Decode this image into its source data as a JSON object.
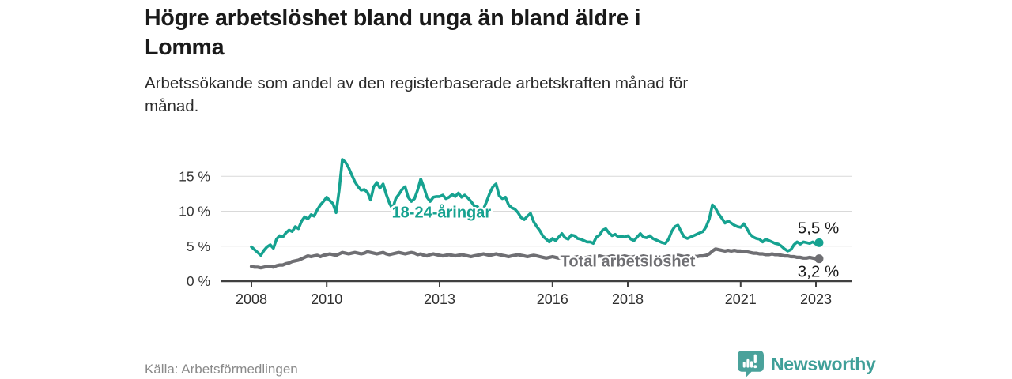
{
  "header": {
    "title": "Högre arbetslöshet bland unga än bland äldre i Lomma",
    "title_lines": [
      "Högre arbetslöshet bland unga än bland äldre i",
      "Lomma"
    ],
    "subtitle": "Arbetssökande som andel av den registerbaserade arbetskraften månad för månad.",
    "subtitle_lines": [
      "Arbetssökande som andel av den registerbaserade arbetskraften månad för",
      "månad."
    ]
  },
  "footer": {
    "source": "Källa: Arbetsförmedlingen",
    "brand": "Newsworthy",
    "brand_color": "#3f9f98",
    "logo_icon": "bar-chart-speech-bubble-icon"
  },
  "chart_data": {
    "type": "line",
    "title": "Högre arbetslöshet bland unga än bland äldre i Lomma",
    "subtitle": "Arbetssökande som andel av den registerbaserade arbetskraften månad för månad.",
    "unit": "%",
    "frequency": "monthly",
    "start": "2008-01",
    "end": "2023-02",
    "x_ticks": [
      2008,
      2010,
      2013,
      2016,
      2018,
      2021,
      2023
    ],
    "y_ticks": [
      0,
      5,
      10,
      15
    ],
    "y_tick_suffix": " %",
    "ylim": [
      0,
      18
    ],
    "xlim_years": [
      2008.0,
      2023.97
    ],
    "grid": "horizontal",
    "legend_position": "inline-labels",
    "series": [
      {
        "name": "18-24-åringar",
        "color": "#16a290",
        "line_width": 3.6,
        "end_label": "5,5 %",
        "end_value": 5.5,
        "label_pos": {
          "year": 2013.05,
          "value": 9.9
        },
        "values": [
          4.9,
          4.5,
          4.1,
          3.7,
          4.4,
          4.9,
          5.2,
          4.7,
          6.0,
          6.5,
          6.3,
          6.9,
          7.3,
          7.1,
          7.8,
          7.5,
          8.6,
          9.2,
          8.9,
          9.5,
          9.3,
          10.2,
          10.9,
          11.4,
          12.0,
          11.5,
          11.1,
          9.8,
          13.1,
          17.4,
          17.0,
          16.2,
          15.2,
          14.2,
          13.5,
          13.0,
          13.1,
          12.7,
          11.6,
          13.5,
          14.1,
          13.3,
          13.9,
          12.4,
          11.2,
          10.3,
          11.8,
          12.4,
          13.1,
          13.5,
          12.0,
          11.4,
          11.8,
          13.0,
          14.6,
          13.4,
          12.0,
          11.4,
          12.0,
          12.1,
          12.1,
          12.3,
          11.8,
          12.0,
          12.4,
          12.1,
          12.6,
          12.0,
          12.3,
          11.9,
          11.4,
          10.8,
          10.7,
          10.1,
          10.3,
          11.4,
          12.6,
          13.5,
          13.9,
          12.2,
          11.8,
          12.0,
          10.9,
          10.5,
          10.3,
          9.8,
          9.1,
          8.8,
          9.3,
          9.7,
          8.5,
          7.8,
          7.2,
          6.4,
          6.0,
          5.6,
          6.1,
          5.8,
          6.3,
          6.8,
          6.2,
          6.0,
          6.6,
          6.5,
          6.1,
          6.0,
          5.8,
          5.6,
          5.6,
          5.4,
          6.3,
          6.6,
          7.3,
          7.5,
          6.9,
          6.5,
          6.7,
          6.3,
          6.4,
          6.3,
          6.5,
          6.0,
          5.8,
          6.3,
          6.8,
          6.3,
          6.2,
          6.5,
          6.1,
          5.9,
          5.7,
          5.5,
          5.4,
          6.0,
          7.1,
          7.8,
          8.0,
          7.1,
          6.3,
          6.1,
          6.3,
          6.5,
          6.7,
          6.9,
          7.1,
          7.8,
          8.9,
          10.9,
          10.4,
          9.6,
          9.0,
          8.3,
          8.6,
          8.3,
          8.0,
          7.8,
          7.7,
          8.2,
          7.5,
          6.7,
          6.3,
          6.1,
          6.0,
          5.6,
          6.0,
          5.8,
          5.6,
          5.4,
          5.3,
          5.0,
          4.6,
          4.3,
          4.5,
          5.2,
          5.6,
          5.3,
          5.6,
          5.5,
          5.4,
          5.6,
          5.3,
          5.5
        ]
      },
      {
        "name": "Total arbetslöshet",
        "color": "#6f6f73",
        "line_width": 4.2,
        "end_label": "3,2 %",
        "end_value": 3.2,
        "label_pos": {
          "year": 2018.0,
          "value": 2.9
        },
        "values": [
          2.1,
          2.0,
          2.0,
          1.9,
          2.0,
          2.1,
          2.1,
          2.0,
          2.2,
          2.3,
          2.3,
          2.5,
          2.6,
          2.8,
          2.9,
          3.0,
          3.2,
          3.4,
          3.6,
          3.5,
          3.6,
          3.7,
          3.5,
          3.7,
          3.8,
          3.9,
          3.8,
          3.7,
          3.9,
          4.1,
          4.0,
          3.9,
          4.0,
          4.1,
          4.0,
          3.9,
          4.0,
          4.2,
          4.1,
          4.0,
          3.9,
          4.0,
          4.1,
          3.9,
          3.8,
          3.9,
          4.0,
          4.1,
          4.0,
          3.9,
          4.0,
          4.1,
          4.0,
          3.8,
          3.9,
          3.7,
          3.6,
          3.8,
          3.9,
          3.8,
          3.7,
          3.6,
          3.7,
          3.8,
          3.7,
          3.6,
          3.7,
          3.8,
          3.7,
          3.6,
          3.5,
          3.6,
          3.7,
          3.8,
          3.9,
          3.8,
          3.7,
          3.8,
          3.9,
          3.8,
          3.7,
          3.6,
          3.5,
          3.6,
          3.7,
          3.8,
          3.7,
          3.6,
          3.5,
          3.6,
          3.7,
          3.6,
          3.5,
          3.4,
          3.3,
          3.4,
          3.5,
          3.4,
          3.3,
          3.4,
          3.5,
          3.4,
          3.3,
          3.4,
          3.5,
          3.4,
          3.3,
          3.4,
          3.5,
          3.4,
          3.5,
          3.6,
          3.5,
          3.4,
          3.5,
          3.6,
          3.5,
          3.4,
          3.5,
          3.6,
          3.5,
          3.4,
          3.5,
          3.6,
          3.5,
          3.6,
          3.5,
          3.4,
          3.5,
          3.4,
          3.5,
          3.4,
          3.5,
          3.6,
          3.5,
          3.6,
          3.7,
          3.6,
          3.5,
          3.6,
          3.5,
          3.6,
          3.5,
          3.6,
          3.6,
          3.7,
          3.9,
          4.3,
          4.6,
          4.5,
          4.4,
          4.3,
          4.4,
          4.3,
          4.4,
          4.3,
          4.3,
          4.2,
          4.2,
          4.1,
          4.0,
          4.0,
          3.9,
          3.9,
          3.8,
          3.8,
          3.9,
          3.8,
          3.8,
          3.7,
          3.6,
          3.6,
          3.5,
          3.5,
          3.4,
          3.4,
          3.3,
          3.3,
          3.4,
          3.3,
          3.2,
          3.2
        ]
      }
    ]
  }
}
